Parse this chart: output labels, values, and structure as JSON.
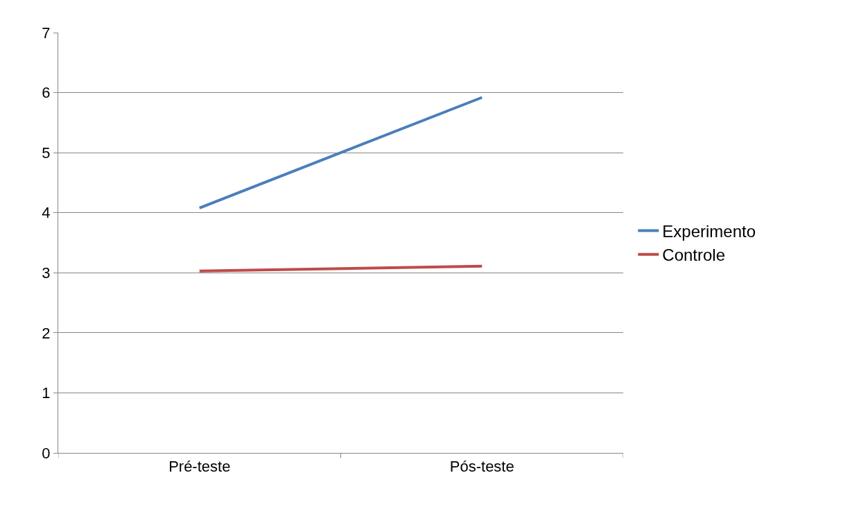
{
  "chart_data": {
    "type": "line",
    "categories": [
      "Pré-teste",
      "Pós-teste"
    ],
    "series": [
      {
        "name": "Experimento",
        "color": "#4a7ebb",
        "values": [
          4.08,
          5.92
        ]
      },
      {
        "name": "Controle",
        "color": "#be4b48",
        "values": [
          3.03,
          3.11
        ]
      }
    ],
    "ylim": [
      0,
      7
    ],
    "yticks": [
      0,
      1,
      2,
      3,
      4,
      5,
      6,
      7
    ],
    "grid": "y",
    "legend": "right",
    "marker": "none",
    "line_style": "solid"
  }
}
